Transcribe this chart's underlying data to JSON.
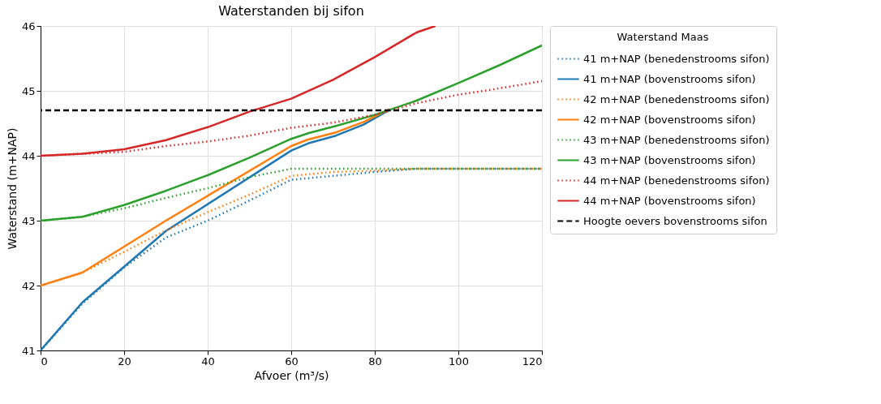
{
  "chart_data": {
    "type": "line",
    "title": "Waterstanden bij sifon",
    "xlabel": "Afvoer (m³/s)",
    "ylabel": "Waterstand (m+NAP)",
    "legend_title": "Waterstand Maas",
    "legend": "right",
    "grid": true,
    "marker": "none",
    "xlim": [
      0,
      120
    ],
    "ylim": [
      41,
      46
    ],
    "xticks": [
      0,
      20,
      40,
      60,
      80,
      100,
      120
    ],
    "yticks": [
      41,
      42,
      43,
      44,
      45,
      46
    ],
    "series": [
      {
        "name": "41 m+NAP (benedenstrooms sifon)",
        "color": "#1f77b4",
        "line_style": "dotted",
        "x": [
          0,
          10,
          20,
          30,
          40,
          50,
          60,
          70,
          80,
          90,
          100,
          110,
          120
        ],
        "values": [
          41.0,
          41.72,
          42.28,
          42.74,
          43.0,
          43.31,
          43.63,
          43.69,
          43.75,
          43.8,
          43.8,
          43.8,
          43.8
        ]
      },
      {
        "name": "41 m+NAP (bovenstrooms sifon)",
        "color": "#1f77b4",
        "line_style": "solid",
        "x": [
          0,
          10,
          30,
          60,
          64,
          70.7,
          77.3,
          83.6
        ],
        "values": [
          41.0,
          41.74,
          42.84,
          44.08,
          44.19,
          44.31,
          44.48,
          44.71
        ]
      },
      {
        "name": "42 m+NAP (benedenstrooms sifon)",
        "color": "#ff7f0e",
        "line_style": "dotted",
        "x": [
          0,
          10,
          20,
          30,
          40,
          50,
          60,
          70,
          80,
          90,
          100,
          110,
          120
        ],
        "values": [
          42.0,
          42.2,
          42.52,
          42.85,
          43.13,
          43.4,
          43.69,
          43.75,
          43.77,
          43.8,
          43.8,
          43.8,
          43.8
        ]
      },
      {
        "name": "42 m+NAP (bovenstrooms sifon)",
        "color": "#ff7f0e",
        "line_style": "solid",
        "x": [
          0,
          10,
          30,
          60,
          64,
          70.7,
          77.3,
          83.6
        ],
        "values": [
          42.0,
          42.2,
          43.0,
          44.15,
          44.25,
          44.36,
          44.52,
          44.72
        ]
      },
      {
        "name": "43 m+NAP (benedenstrooms sifon)",
        "color": "#2ca02c",
        "line_style": "dotted",
        "x": [
          0,
          10,
          20,
          30,
          40,
          50,
          60,
          70,
          80,
          90,
          100,
          110,
          120
        ],
        "values": [
          43.0,
          43.06,
          43.19,
          43.35,
          43.5,
          43.67,
          43.8,
          43.8,
          43.8,
          43.8,
          43.8,
          43.8,
          43.8
        ]
      },
      {
        "name": "43 m+NAP (bovenstrooms sifon)",
        "color": "#2ca02c",
        "line_style": "solid",
        "x": [
          0,
          10,
          20,
          30,
          40,
          50,
          60,
          64.2,
          70.7,
          80,
          90,
          100,
          110,
          120
        ],
        "values": [
          43.0,
          43.06,
          43.24,
          43.46,
          43.7,
          43.97,
          44.26,
          44.35,
          44.46,
          44.63,
          44.85,
          45.12,
          45.4,
          45.7
        ]
      },
      {
        "name": "44 m+NAP (benedenstrooms sifon)",
        "color": "#d62728",
        "line_style": "dotted",
        "x": [
          0,
          10,
          20,
          30,
          40,
          50,
          60,
          70,
          80,
          90,
          100,
          110,
          120
        ],
        "values": [
          44.0,
          44.03,
          44.06,
          44.15,
          44.22,
          44.31,
          44.43,
          44.51,
          44.63,
          44.81,
          44.94,
          45.04,
          45.15
        ]
      },
      {
        "name": "44 m+NAP (bovenstrooms sifon)",
        "color": "#d62728",
        "line_style": "solid",
        "x": [
          0,
          10,
          20,
          30,
          40,
          50,
          60,
          70,
          80,
          90,
          94.5
        ],
        "values": [
          44.0,
          44.03,
          44.1,
          44.24,
          44.44,
          44.68,
          44.88,
          45.17,
          45.52,
          45.9,
          46.0
        ]
      }
    ],
    "ref_lines": [
      {
        "axis": "y",
        "value": 44.7,
        "label": "Hoogte oevers bovenstrooms sifon",
        "color": "#000000",
        "line_style": "dashed"
      }
    ]
  }
}
